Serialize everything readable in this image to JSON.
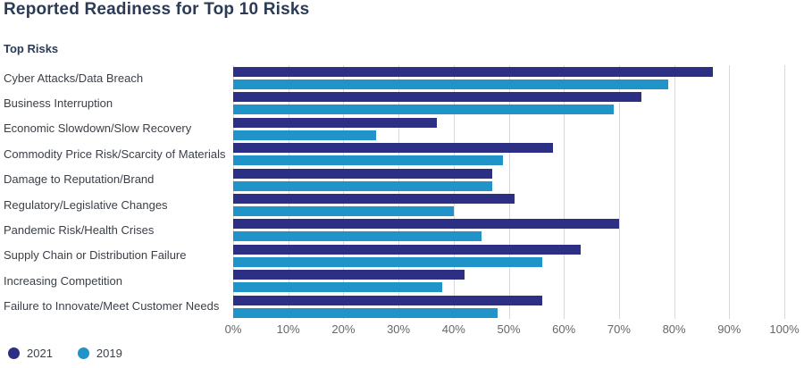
{
  "chart_data": {
    "type": "bar",
    "orientation": "horizontal",
    "title": "Reported Readiness for Top 10 Risks",
    "ylabel": "Top Risks",
    "xlabel": "",
    "xlim": [
      0,
      100
    ],
    "grid": true,
    "legend_position": "bottom-left",
    "x_ticks": [
      "0%",
      "10%",
      "20%",
      "30%",
      "40%",
      "50%",
      "60%",
      "70%",
      "80%",
      "90%",
      "100%"
    ],
    "categories": [
      "Cyber Attacks/Data Breach",
      "Business Interruption",
      "Economic Slowdown/Slow Recovery",
      "Commodity Price Risk/Scarcity of Materials",
      "Damage to Reputation/Brand",
      "Regulatory/Legislative Changes",
      "Pandemic Risk/Health Crises",
      "Supply Chain or Distribution Failure",
      "Increasing Competition",
      "Failure to Innovate/Meet Customer Needs"
    ],
    "series": [
      {
        "name": "2021",
        "color": "#2d2f85",
        "values": [
          87,
          74,
          37,
          58,
          47,
          51,
          70,
          63,
          42,
          56
        ]
      },
      {
        "name": "2019",
        "color": "#2093c8",
        "values": [
          79,
          69,
          26,
          49,
          47,
          40,
          45,
          56,
          38,
          48
        ]
      }
    ],
    "colors": {
      "grid": "#d9d9d9",
      "title_text": "#2b3a55",
      "category_text": "#3a3f47",
      "tick_text": "#666666"
    }
  }
}
